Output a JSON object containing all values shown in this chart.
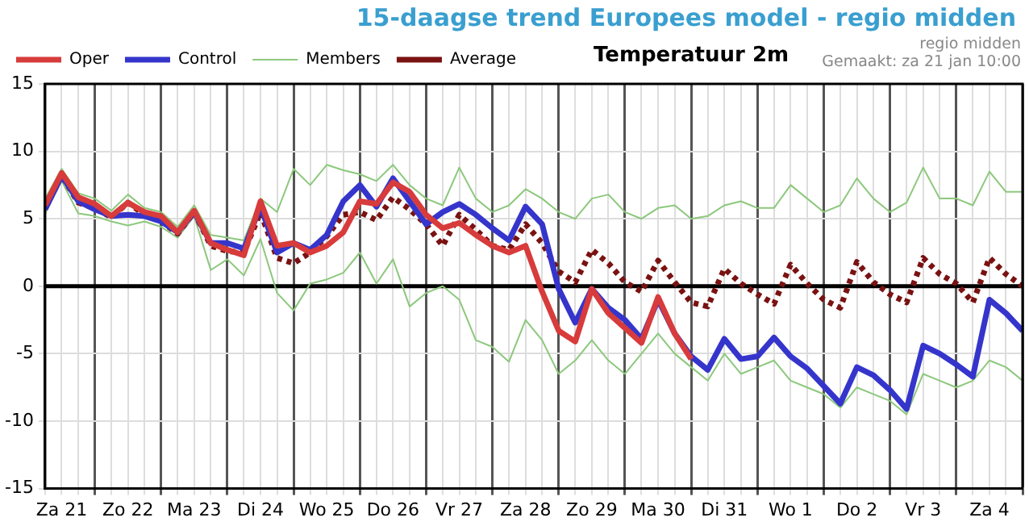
{
  "chart_data": {
    "type": "line",
    "title": "15-daagse trend Europees model - regio midden",
    "subtitle": "Temperatuur 2m",
    "annotations": [
      "regio midden",
      "Gemaakt: za 21 jan 10:00"
    ],
    "x": [
      "--01-21T06:00",
      "--01-21T12:00",
      "--01-21T18:00",
      "--01-22T00:00",
      "--01-22T06:00",
      "--01-22T12:00",
      "--01-22T18:00",
      "--01-23T00:00",
      "--01-23T06:00",
      "--01-23T12:00",
      "--01-23T18:00",
      "--01-24T00:00",
      "--01-24T06:00",
      "--01-24T12:00",
      "--01-24T18:00",
      "--01-25T00:00",
      "--01-25T06:00",
      "--01-25T12:00",
      "--01-25T18:00",
      "--01-26T00:00",
      "--01-26T06:00",
      "--01-26T12:00",
      "--01-26T18:00",
      "--01-27T00:00",
      "--01-27T06:00",
      "--01-27T12:00",
      "--01-27T18:00",
      "--01-28T00:00",
      "--01-28T06:00",
      "--01-28T12:00",
      "--01-28T18:00",
      "--01-29T00:00",
      "--01-29T06:00",
      "--01-29T12:00",
      "--01-29T18:00",
      "--01-30T00:00",
      "--01-30T06:00",
      "--01-30T12:00",
      "--01-30T18:00",
      "--01-31T00:00",
      "--01-31T06:00",
      "--01-31T12:00",
      "--01-31T18:00",
      "--02-01T00:00",
      "--02-01T06:00",
      "--02-01T12:00",
      "--02-01T18:00",
      "--02-02T00:00",
      "--02-02T06:00",
      "--02-02T12:00",
      "--02-02T18:00",
      "--02-03T00:00",
      "--02-03T06:00",
      "--02-03T12:00",
      "--02-03T18:00",
      "--02-04T00:00",
      "--02-04T06:00",
      "--02-04T12:00",
      "--02-04T18:00",
      "--02-05T00:00"
    ],
    "series": [
      {
        "name": "Oper",
        "color": "#d83b3b",
        "values": [
          6.0,
          8.4,
          6.6,
          6.1,
          5.2,
          6.2,
          5.5,
          5.2,
          4.0,
          5.6,
          3.2,
          2.7,
          2.3,
          6.3,
          3.0,
          3.2,
          2.5,
          3.0,
          4.0,
          6.3,
          6.1,
          7.7,
          7.0,
          5.3,
          4.3,
          4.7,
          3.8,
          3.0,
          2.5,
          3.0,
          -0.4,
          -3.3,
          -4.1,
          -0.2,
          -2.0,
          -3.1,
          -4.2,
          -0.8,
          -3.5,
          -5.4,
          null,
          null,
          null,
          null,
          null,
          null,
          null,
          null,
          null,
          null,
          null,
          null,
          null,
          null,
          null,
          null,
          null,
          null,
          null,
          null
        ]
      },
      {
        "name": "Control",
        "color": "#3535cc",
        "values": [
          5.7,
          8.2,
          6.3,
          5.7,
          5.2,
          5.3,
          5.2,
          4.8,
          4.0,
          5.5,
          3.2,
          3.2,
          2.8,
          5.9,
          2.5,
          3.2,
          2.7,
          3.8,
          6.3,
          7.5,
          5.9,
          8.0,
          6.3,
          4.6,
          5.5,
          6.1,
          5.3,
          4.3,
          3.4,
          5.9,
          4.6,
          -0.2,
          -2.7,
          -0.2,
          -1.6,
          -2.5,
          -3.9,
          -1.0,
          -3.5,
          -5.2,
          -6.2,
          -3.9,
          -5.4,
          -5.2,
          -3.8,
          -5.2,
          -6.1,
          -7.4,
          -8.7,
          -6.0,
          -6.6,
          -7.7,
          -9.1,
          -4.4,
          -5.0,
          -5.8,
          -6.7,
          -1.0,
          -2.0,
          -3.3
        ]
      },
      {
        "name": "Members",
        "color": "#8cc87c",
        "values": [
          6.5,
          8.7,
          6.9,
          6.5,
          5.6,
          6.8,
          5.8,
          5.5,
          4.4,
          6.0,
          3.8,
          3.6,
          3.4,
          6.5,
          5.5,
          8.7,
          7.5,
          9.0,
          8.6,
          8.3,
          7.8,
          9.0,
          7.5,
          6.5,
          6.0,
          8.8,
          6.5,
          5.5,
          6.0,
          7.2,
          6.5,
          5.5,
          5.0,
          6.5,
          6.8,
          5.5,
          5.0,
          5.8,
          6.0,
          5.0,
          5.2,
          6.0,
          6.3,
          5.8,
          5.8,
          7.5,
          6.5,
          5.5,
          6.0,
          8.0,
          6.5,
          5.5,
          6.2,
          8.8,
          6.5,
          6.5,
          6.0,
          8.5,
          7.0,
          7.0
        ]
      },
      {
        "color": "#8cc87c",
        "values": [
          5.4,
          7.8,
          5.4,
          5.2,
          4.8,
          4.5,
          4.8,
          4.4,
          3.6,
          5.2,
          1.2,
          2.0,
          0.8,
          3.5,
          -0.5,
          -1.8,
          0.2,
          0.5,
          1.0,
          2.5,
          0.2,
          2.0,
          -1.5,
          -0.5,
          0.0,
          -1.0,
          -4.0,
          -4.5,
          -5.6,
          -2.5,
          -4.0,
          -6.5,
          -5.5,
          -4.0,
          -5.5,
          -6.5,
          -5.0,
          -3.5,
          -5.0,
          -6.0,
          -7.0,
          -5.0,
          -6.5,
          -6.0,
          -5.5,
          -7.0,
          -7.5,
          -8.0,
          -9.0,
          -7.5,
          -8.0,
          -8.5,
          -9.5,
          -6.5,
          -7.0,
          -7.5,
          -7.0,
          -5.5,
          -6.0,
          -7.0
        ]
      },
      {
        "name": "Average",
        "color": "#7a1212",
        "line_style": "dotted",
        "values": [
          5.8,
          8.2,
          6.2,
          5.8,
          5.1,
          6.2,
          5.3,
          4.8,
          3.9,
          5.5,
          3.0,
          2.6,
          2.5,
          5.5,
          2.1,
          1.7,
          2.5,
          3.7,
          5.3,
          5.5,
          4.9,
          6.6,
          5.7,
          4.6,
          3.0,
          5.3,
          4.2,
          3.0,
          2.7,
          4.6,
          3.2,
          1.1,
          0.3,
          2.7,
          1.7,
          0.3,
          -0.4,
          1.9,
          0.3,
          -1.2,
          -1.5,
          1.3,
          0.2,
          -0.6,
          -1.3,
          1.6,
          0.2,
          -1.0,
          -1.6,
          1.8,
          0.3,
          -0.6,
          -1.2,
          2.1,
          0.9,
          0.2,
          -1.2,
          2.1,
          0.9,
          0.0
        ]
      }
    ],
    "xlim": [
      "--01-21T06:00",
      "--02-05T00:00"
    ],
    "xticks": [
      {
        "value": "--01-21T06:00",
        "label": null
      },
      {
        "value": "--01-21T12:00",
        "label": "Za 21"
      },
      {
        "value": "--01-21T18:00",
        "label": null
      },
      {
        "value": "--01-22T00:00",
        "label": null
      },
      {
        "value": "--01-22T06:00",
        "label": null
      },
      {
        "value": "--01-22T12:00",
        "label": "Zo 22"
      },
      {
        "value": "--01-22T18:00",
        "label": null
      },
      {
        "value": "--01-23T00:00",
        "label": null
      },
      {
        "value": "--01-23T06:00",
        "label": null
      },
      {
        "value": "--01-23T12:00",
        "label": "Ma 23"
      },
      {
        "value": "--01-23T18:00",
        "label": null
      },
      {
        "value": "--01-24T00:00",
        "label": null
      },
      {
        "value": "--01-24T06:00",
        "label": null
      },
      {
        "value": "--01-24T12:00",
        "label": "Di 24"
      },
      {
        "value": "--01-24T18:00",
        "label": null
      },
      {
        "value": "--01-25T00:00",
        "label": null
      },
      {
        "value": "--01-25T06:00",
        "label": null
      },
      {
        "value": "--01-25T12:00",
        "label": "Wo 25"
      },
      {
        "value": "--01-25T18:00",
        "label": null
      },
      {
        "value": "--01-26T00:00",
        "label": null
      },
      {
        "value": "--01-26T06:00",
        "label": null
      },
      {
        "value": "--01-26T12:00",
        "label": "Do 26"
      },
      {
        "value": "--01-26T18:00",
        "label": null
      },
      {
        "value": "--01-27T00:00",
        "label": null
      },
      {
        "value": "--01-27T06:00",
        "label": null
      },
      {
        "value": "--01-27T12:00",
        "label": "Vr 27"
      },
      {
        "value": "--01-27T18:00",
        "label": null
      },
      {
        "value": "--01-28T00:00",
        "label": null
      },
      {
        "value": "--01-28T06:00",
        "label": null
      },
      {
        "value": "--01-28T12:00",
        "label": "Za 28"
      },
      {
        "value": "--01-28T18:00",
        "label": null
      },
      {
        "value": "--01-29T00:00",
        "label": null
      },
      {
        "value": "--01-29T06:00",
        "label": null
      },
      {
        "value": "--01-29T12:00",
        "label": "Zo 29"
      },
      {
        "value": "--01-29T18:00",
        "label": null
      },
      {
        "value": "--01-30T00:00",
        "label": null
      },
      {
        "value": "--01-30T06:00",
        "label": null
      },
      {
        "value": "--01-30T12:00",
        "label": "Ma 30"
      },
      {
        "value": "--01-30T18:00",
        "label": null
      },
      {
        "value": "--01-31T00:00",
        "label": null
      },
      {
        "value": "--01-31T06:00",
        "label": null
      },
      {
        "value": "--01-31T12:00",
        "label": "Di 31"
      },
      {
        "value": "--01-31T18:00",
        "label": null
      },
      {
        "value": "--02-01T00:00",
        "label": null
      },
      {
        "value": "--02-01T06:00",
        "label": null
      },
      {
        "value": "--02-01T12:00",
        "label": "Wo 1"
      },
      {
        "value": "--02-01T18:00",
        "label": null
      },
      {
        "value": "--02-02T00:00",
        "label": null
      },
      {
        "value": "--02-02T06:00",
        "label": null
      },
      {
        "value": "--02-02T12:00",
        "label": "Do 2"
      },
      {
        "value": "--02-02T18:00",
        "label": null
      },
      {
        "value": "--02-03T00:00",
        "label": null
      },
      {
        "value": "--02-03T06:00",
        "label": null
      },
      {
        "value": "--02-03T12:00",
        "label": "Vr 3"
      },
      {
        "value": "--02-03T18:00",
        "label": null
      },
      {
        "value": "--02-04T00:00",
        "label": null
      },
      {
        "value": "--02-04T06:00",
        "label": null
      },
      {
        "value": "--02-04T12:00",
        "label": "Za 4"
      },
      {
        "value": "--02-04T18:00",
        "label": null
      },
      {
        "value": "--02-05T00:00",
        "label": null
      }
    ],
    "ylim": [
      -15,
      15
    ],
    "yticks": [
      -15,
      -10,
      -5,
      0,
      5,
      10,
      15
    ],
    "ref_lines": [
      {
        "axis": "y",
        "value": 0,
        "color": "#000000"
      }
    ],
    "grid": true,
    "legend": "top left",
    "marker": "none"
  }
}
